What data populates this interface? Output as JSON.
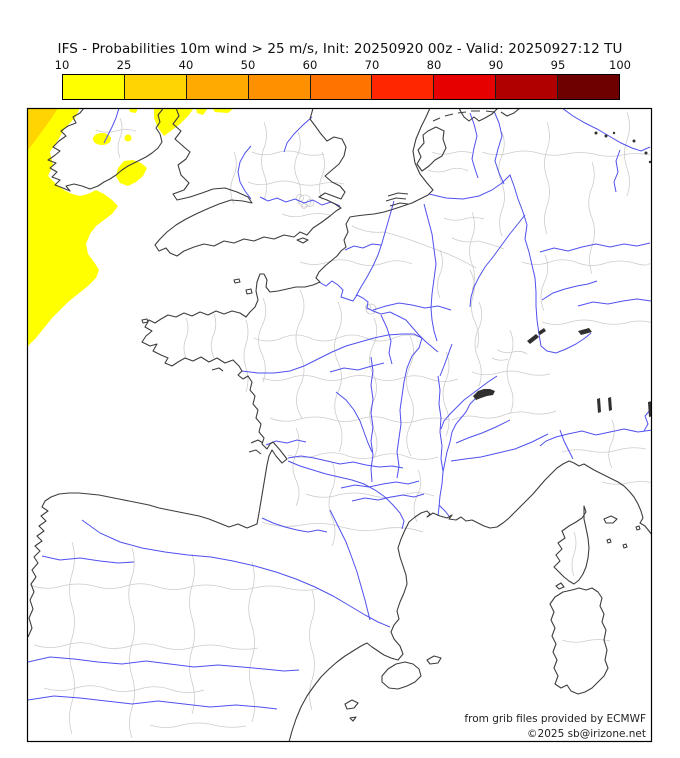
{
  "title": "IFS - Probabilities 10m wind > 25 m/s, Init: 20250920 00z - Valid: 20250927:12 TU",
  "colorbar": {
    "ticks": [
      "10",
      "25",
      "40",
      "50",
      "60",
      "70",
      "80",
      "90",
      "95",
      "100"
    ],
    "segments": [
      {
        "range": "10-25",
        "color": "#FFFF00"
      },
      {
        "range": "25-40",
        "color": "#FFD400"
      },
      {
        "range": "40-50",
        "color": "#FFAA00"
      },
      {
        "range": "50-60",
        "color": "#FF9100"
      },
      {
        "range": "60-70",
        "color": "#FF7300"
      },
      {
        "range": "70-80",
        "color": "#FF2600"
      },
      {
        "range": "80-90",
        "color": "#E60000"
      },
      {
        "range": "90-95",
        "color": "#B10000"
      },
      {
        "range": "95-100",
        "color": "#6E0000"
      }
    ]
  },
  "map": {
    "attribution_line1": "from grib files provided by ECMWF",
    "attribution_line2": "©2025 sb@irizone.net",
    "colors": {
      "frame": "#000000",
      "coastline": "#3d3d3d",
      "admin": "#cccccc",
      "river": "#5050f0",
      "lake": "#303030",
      "shade_low": "#FFFF00",
      "shade_mid": "#FFD400"
    }
  },
  "chart_data": {
    "type": "heatmap",
    "title": "IFS - Probabilities 10m wind > 25 m/s",
    "init": "20250920 00z",
    "valid": "20250927:12 TU",
    "legend_thresholds": [
      10,
      25,
      40,
      50,
      60,
      70,
      80,
      90,
      95,
      100
    ],
    "legend_colors": [
      "#FFFF00",
      "#FFD400",
      "#FFAA00",
      "#FF9100",
      "#FF7300",
      "#FF2600",
      "#E60000",
      "#B10000",
      "#6E0000"
    ],
    "notes": "10-25% probability band (yellow) over Atlantic west and south of Ireland and Irish Sea; 25-40% band (gold) in extreme northwest corner; rest of domain below 10%"
  }
}
